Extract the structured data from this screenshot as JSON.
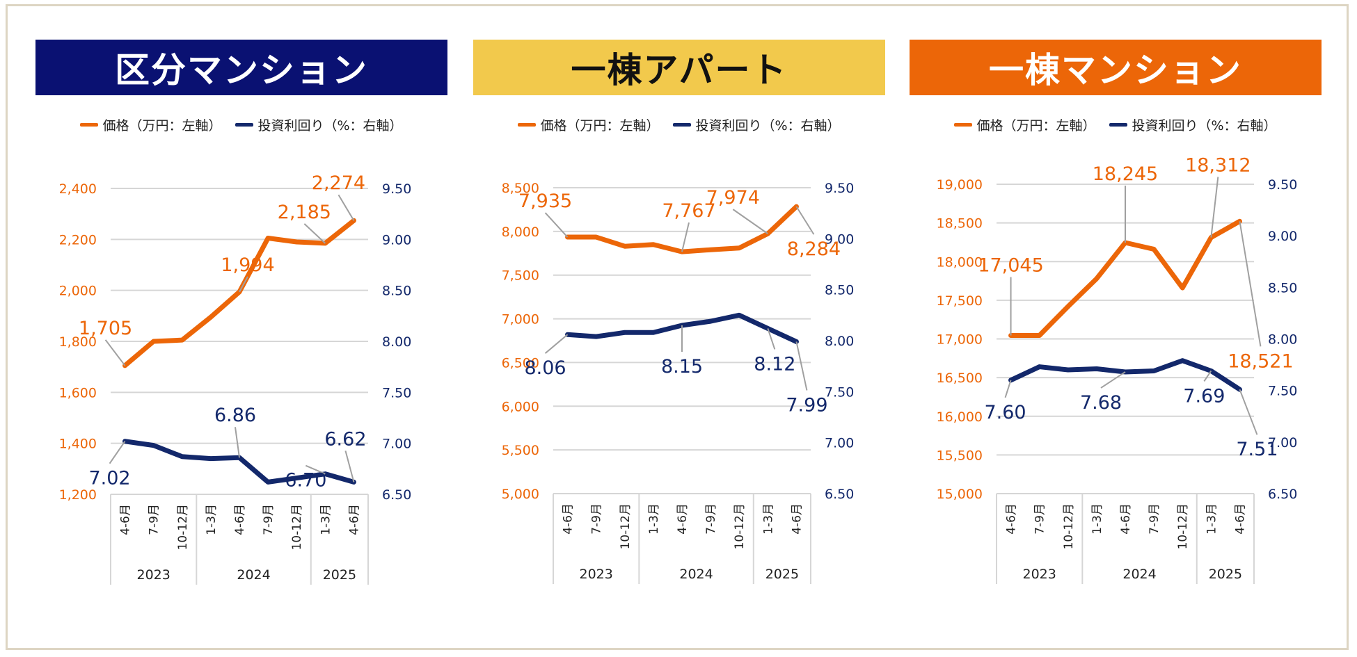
{
  "legend": {
    "price_label": "価格（万円：左軸）",
    "yield_label": "投資利回り（%：右軸）"
  },
  "colors": {
    "price": "#ec6608",
    "yield": "#13286b",
    "banner1_bg": "#0a1172",
    "banner1_fg": "#ffffff",
    "banner2_bg": "#f2c94c",
    "banner2_fg": "#111111",
    "banner3_bg": "#ec6608",
    "banner3_fg": "#ffffff",
    "grid": "#d6d6d6",
    "leader": "#a0a0a0"
  },
  "chart_data": [
    {
      "type": "line",
      "title": "区分マンション",
      "x_labels": [
        "4-6月",
        "7-9月",
        "10-12月",
        "1-3月",
        "4-6月",
        "7-9月",
        "10-12月",
        "1-3月",
        "4-6月"
      ],
      "year_groups": [
        {
          "label": "2023",
          "count": 3
        },
        {
          "label": "2024",
          "count": 4
        },
        {
          "label": "2025",
          "count": 2
        }
      ],
      "left_axis": {
        "ticks": [
          "1,200",
          "1,400",
          "1,600",
          "1,800",
          "2,000",
          "2,200",
          "2,400"
        ],
        "ylim": [
          1200,
          2400
        ]
      },
      "right_axis": {
        "ticks": [
          "6.50",
          "7.00",
          "7.50",
          "8.00",
          "8.50",
          "9.00",
          "9.50"
        ],
        "ylim": [
          6.5,
          9.5
        ]
      },
      "series": [
        {
          "name": "価格（万円：左軸）",
          "axis": "left",
          "values": [
            1705,
            1800,
            1805,
            1895,
            1994,
            2205,
            2190,
            2185,
            2274
          ]
        },
        {
          "name": "投資利回り（%：右軸）",
          "axis": "right",
          "values": [
            7.02,
            6.98,
            6.87,
            6.85,
            6.86,
            6.62,
            6.66,
            6.7,
            6.62
          ]
        }
      ],
      "annotations": [
        {
          "series": 0,
          "index": 0,
          "text": "1,705"
        },
        {
          "series": 0,
          "index": 4,
          "text": "1,994"
        },
        {
          "series": 0,
          "index": 7,
          "text": "2,185"
        },
        {
          "series": 0,
          "index": 8,
          "text": "2,274"
        },
        {
          "series": 1,
          "index": 0,
          "text": "7.02"
        },
        {
          "series": 1,
          "index": 4,
          "text": "6.86"
        },
        {
          "series": 1,
          "index": 7,
          "text": "6.70"
        },
        {
          "series": 1,
          "index": 8,
          "text": "6.62"
        }
      ]
    },
    {
      "type": "line",
      "title": "一棟アパート",
      "x_labels": [
        "4-6月",
        "7-9月",
        "10-12月",
        "1-3月",
        "4-6月",
        "7-9月",
        "10-12月",
        "1-3月",
        "4-6月"
      ],
      "year_groups": [
        {
          "label": "2023",
          "count": 3
        },
        {
          "label": "2024",
          "count": 4
        },
        {
          "label": "2025",
          "count": 2
        }
      ],
      "left_axis": {
        "ticks": [
          "5,000",
          "5,500",
          "6,000",
          "6,500",
          "7,000",
          "7,500",
          "8,000",
          "8,500"
        ],
        "ylim": [
          5000,
          8500
        ]
      },
      "right_axis": {
        "ticks": [
          "6.50",
          "7.00",
          "7.50",
          "8.00",
          "8.50",
          "9.00",
          "9.50"
        ],
        "ylim": [
          6.5,
          9.5
        ]
      },
      "series": [
        {
          "name": "価格（万円：左軸）",
          "axis": "left",
          "values": [
            7935,
            7935,
            7830,
            7850,
            7767,
            7790,
            7810,
            7974,
            8284
          ]
        },
        {
          "name": "投資利回り（%：右軸）",
          "axis": "right",
          "values": [
            8.06,
            8.04,
            8.08,
            8.08,
            8.15,
            8.19,
            8.25,
            8.12,
            7.99
          ]
        }
      ],
      "annotations": [
        {
          "series": 0,
          "index": 0,
          "text": "7,935"
        },
        {
          "series": 0,
          "index": 4,
          "text": "7,767"
        },
        {
          "series": 0,
          "index": 7,
          "text": "7,974"
        },
        {
          "series": 0,
          "index": 8,
          "text": "8,284"
        },
        {
          "series": 1,
          "index": 0,
          "text": "8.06"
        },
        {
          "series": 1,
          "index": 4,
          "text": "8.15"
        },
        {
          "series": 1,
          "index": 7,
          "text": "8.12"
        },
        {
          "series": 1,
          "index": 8,
          "text": "7.99"
        }
      ]
    },
    {
      "type": "line",
      "title": "一棟マンション",
      "x_labels": [
        "4-6月",
        "7-9月",
        "10-12月",
        "1-3月",
        "4-6月",
        "7-9月",
        "10-12月",
        "1-3月",
        "4-6月"
      ],
      "year_groups": [
        {
          "label": "2023",
          "count": 3
        },
        {
          "label": "2024",
          "count": 4
        },
        {
          "label": "2025",
          "count": 2
        }
      ],
      "left_axis": {
        "ticks": [
          "15,000",
          "15,500",
          "16,000",
          "16,500",
          "17,000",
          "17,500",
          "18,000",
          "18,500",
          "19,000"
        ],
        "ylim": [
          15000,
          19000
        ]
      },
      "right_axis": {
        "ticks": [
          "6.50",
          "7.00",
          "7.50",
          "8.00",
          "8.50",
          "9.00",
          "9.50"
        ],
        "ylim": [
          6.5,
          9.5
        ]
      },
      "series": [
        {
          "name": "価格（万円：左軸）",
          "axis": "left",
          "values": [
            17045,
            17045,
            17420,
            17780,
            18245,
            18160,
            17660,
            18312,
            18521
          ]
        },
        {
          "name": "投資利回り（%：右軸）",
          "axis": "right",
          "values": [
            7.6,
            7.73,
            7.7,
            7.71,
            7.68,
            7.69,
            7.79,
            7.69,
            7.51
          ]
        }
      ],
      "annotations": [
        {
          "series": 0,
          "index": 0,
          "text": "17,045"
        },
        {
          "series": 0,
          "index": 4,
          "text": "18,245"
        },
        {
          "series": 0,
          "index": 7,
          "text": "18,312"
        },
        {
          "series": 0,
          "index": 8,
          "text": "18,521"
        },
        {
          "series": 1,
          "index": 0,
          "text": "7.60"
        },
        {
          "series": 1,
          "index": 4,
          "text": "7.68"
        },
        {
          "series": 1,
          "index": 7,
          "text": "7.69"
        },
        {
          "series": 1,
          "index": 8,
          "text": "7.51"
        }
      ]
    }
  ]
}
